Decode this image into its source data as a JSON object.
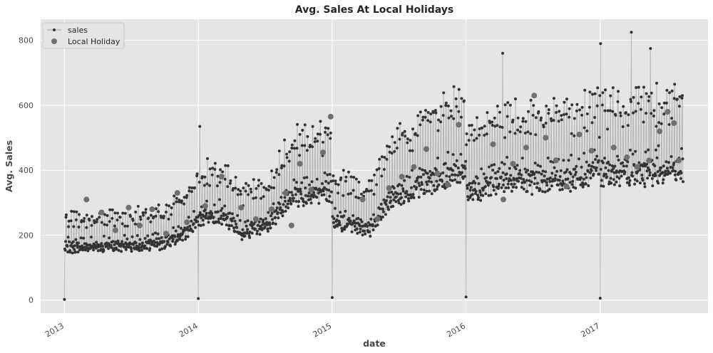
{
  "chart_data": {
    "type": "line",
    "title": "Avg. Sales At Local Holidays",
    "xlabel": "date",
    "ylabel": "Avg. Sales",
    "x_range": [
      "2012-10-28",
      "2017-10-22"
    ],
    "ylim": [
      -40,
      865
    ],
    "x_ticks": [
      "2013",
      "2014",
      "2015",
      "2016",
      "2017"
    ],
    "x_tick_dates": [
      "2013-01-01",
      "2014-01-01",
      "2015-01-01",
      "2016-01-01",
      "2017-01-01"
    ],
    "y_ticks": [
      0,
      200,
      400,
      600,
      800
    ],
    "grid": true,
    "legend_position": "top-left",
    "colors": {
      "background": "#e5e5e5",
      "grid": "#ffffff",
      "line": "#b5b5b5",
      "points": "#333333",
      "holiday": "#707070"
    },
    "series": [
      {
        "name": "sales",
        "style": "line-with-points",
        "daily_profile": {
          "start": "2013-01-01",
          "end": "2017-08-15",
          "weekly_pattern": "weekend peaks",
          "level_knots": [
            [
              "2013-01-02",
              185
            ],
            [
              "2013-06-01",
              190
            ],
            [
              "2013-10-01",
              200
            ],
            [
              "2013-12-15",
              250
            ],
            [
              "2014-01-02",
              290
            ],
            [
              "2014-03-01",
              300
            ],
            [
              "2014-05-01",
              240
            ],
            [
              "2014-07-15",
              270
            ],
            [
              "2014-09-15",
              370
            ],
            [
              "2014-12-31",
              380
            ],
            [
              "2015-01-02",
              280
            ],
            [
              "2015-04-15",
              250
            ],
            [
              "2015-06-15",
              360
            ],
            [
              "2015-10-01",
              420
            ],
            [
              "2015-12-31",
              460
            ],
            [
              "2016-01-02",
              380
            ],
            [
              "2016-04-01",
              420
            ],
            [
              "2016-08-01",
              420
            ],
            [
              "2016-11-15",
              430
            ],
            [
              "2016-12-31",
              480
            ],
            [
              "2017-01-02",
              440
            ],
            [
              "2017-08-15",
              460
            ]
          ],
          "zero_days": [
            [
              "2013-01-01",
              2
            ],
            [
              "2014-01-01",
              5
            ],
            [
              "2015-01-01",
              8
            ],
            [
              "2016-01-01",
              10
            ],
            [
              "2017-01-01",
              6
            ]
          ],
          "peak_days": [
            [
              "2014-01-05",
              535
            ],
            [
              "2016-04-10",
              760
            ],
            [
              "2017-01-02",
              790
            ],
            [
              "2017-03-27",
              825
            ],
            [
              "2017-05-18",
              775
            ]
          ]
        }
      },
      {
        "name": "Local Holiday",
        "style": "marker",
        "points": [
          [
            "2013-03-02",
            310
          ],
          [
            "2013-04-12",
            270
          ],
          [
            "2013-05-20",
            215
          ],
          [
            "2013-06-25",
            285
          ],
          [
            "2013-07-25",
            230
          ],
          [
            "2013-08-28",
            280
          ],
          [
            "2013-10-05",
            205
          ],
          [
            "2013-11-05",
            330
          ],
          [
            "2013-12-01",
            240
          ],
          [
            "2014-01-20",
            290
          ],
          [
            "2014-03-05",
            380
          ],
          [
            "2014-04-28",
            285
          ],
          [
            "2014-06-07",
            250
          ],
          [
            "2014-07-20",
            280
          ],
          [
            "2014-08-27",
            330
          ],
          [
            "2014-09-12",
            230
          ],
          [
            "2014-10-05",
            420
          ],
          [
            "2014-11-05",
            340
          ],
          [
            "2014-12-07",
            455
          ],
          [
            "2014-12-28",
            565
          ],
          [
            "2015-03-25",
            310
          ],
          [
            "2015-05-05",
            250
          ],
          [
            "2015-06-05",
            345
          ],
          [
            "2015-07-10",
            380
          ],
          [
            "2015-08-12",
            410
          ],
          [
            "2015-09-15",
            465
          ],
          [
            "2015-10-15",
            390
          ],
          [
            "2015-11-12",
            355
          ],
          [
            "2015-12-12",
            540
          ],
          [
            "2016-03-15",
            480
          ],
          [
            "2016-04-12",
            310
          ],
          [
            "2016-05-08",
            420
          ],
          [
            "2016-06-13",
            470
          ],
          [
            "2016-07-05",
            630
          ],
          [
            "2016-08-05",
            500
          ],
          [
            "2016-09-02",
            430
          ],
          [
            "2016-10-01",
            350
          ],
          [
            "2016-11-05",
            510
          ],
          [
            "2016-12-08",
            460
          ],
          [
            "2017-02-07",
            470
          ],
          [
            "2017-03-15",
            440
          ],
          [
            "2017-04-12",
            410
          ],
          [
            "2017-05-14",
            430
          ],
          [
            "2017-06-12",
            520
          ],
          [
            "2017-07-04",
            580
          ],
          [
            "2017-07-21",
            545
          ],
          [
            "2017-08-03",
            430
          ]
        ]
      }
    ]
  }
}
